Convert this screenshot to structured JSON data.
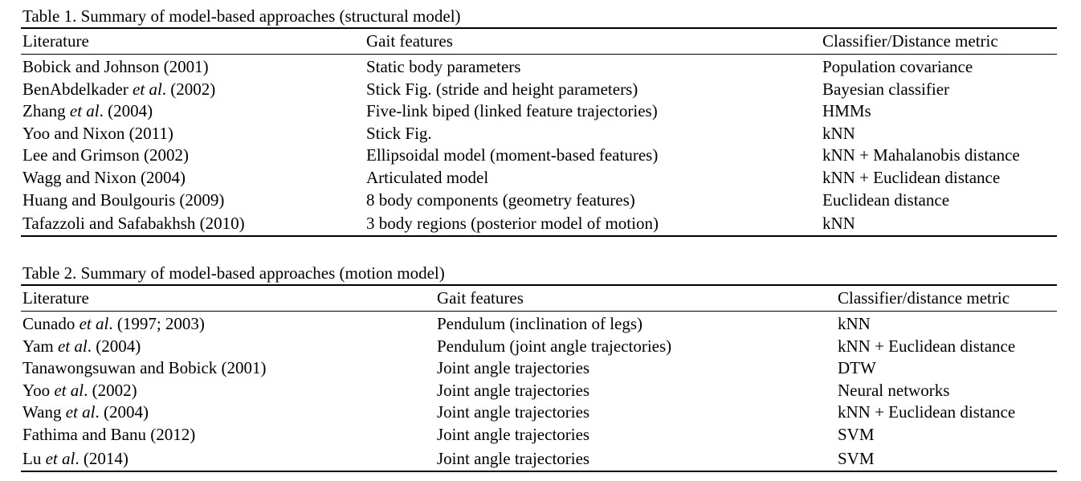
{
  "table1": {
    "caption": "Table 1. Summary of model-based approaches (structural model)",
    "headers": [
      "Literature",
      "Gait features",
      "Classifier/Distance metric"
    ],
    "rows": [
      {
        "lit": [
          {
            "t": "Bobick and Johnson (2001)"
          }
        ],
        "feat": "Static body parameters",
        "cls": "Population covariance"
      },
      {
        "lit": [
          {
            "t": "BenAbdelkader "
          },
          {
            "t": "et al",
            "i": true
          },
          {
            "t": ". (2002)"
          }
        ],
        "feat": "Stick Fig. (stride and height parameters)",
        "cls": "Bayesian classifier"
      },
      {
        "lit": [
          {
            "t": "Zhang "
          },
          {
            "t": "et al",
            "i": true
          },
          {
            "t": ". (2004)"
          }
        ],
        "feat": "Five-link biped (linked feature trajectories)",
        "cls": "HMMs"
      },
      {
        "lit": [
          {
            "t": "Yoo and Nixon (2011)"
          }
        ],
        "feat": "Stick Fig.",
        "cls": "kNN"
      },
      {
        "lit": [
          {
            "t": "Lee and Grimson (2002)"
          }
        ],
        "feat": "Ellipsoidal model (moment-based features)",
        "cls": "kNN + Mahalanobis distance"
      },
      {
        "lit": [
          {
            "t": "Wagg and Nixon (2004)"
          }
        ],
        "feat": "Articulated model",
        "cls": "kNN + Euclidean distance"
      },
      {
        "lit": [
          {
            "t": "Huang and Boulgouris (2009)"
          }
        ],
        "feat": "8 body components (geometry features)",
        "cls": "Euclidean distance"
      },
      {
        "lit": [
          {
            "t": "Tafazzoli and Safabakhsh (2010)"
          }
        ],
        "feat": "3 body regions (posterior model of motion)",
        "cls": "kNN"
      }
    ]
  },
  "table2": {
    "caption": "Table 2. Summary of model-based approaches (motion model)",
    "headers": [
      "Literature",
      "Gait features",
      "Classifier/distance metric"
    ],
    "rows": [
      {
        "lit": [
          {
            "t": "Cunado "
          },
          {
            "t": "et al",
            "i": true
          },
          {
            "t": ". (1997; 2003)"
          }
        ],
        "feat": "Pendulum (inclination of legs)",
        "cls": "kNN"
      },
      {
        "lit": [
          {
            "t": "Yam "
          },
          {
            "t": "et al",
            "i": true
          },
          {
            "t": ". (2004)"
          }
        ],
        "feat": "Pendulum (joint angle trajectories)",
        "cls": "kNN + Euclidean distance"
      },
      {
        "lit": [
          {
            "t": "Tanawongsuwan and Bobick (2001)"
          }
        ],
        "feat": "Joint angle trajectories",
        "cls": "DTW"
      },
      {
        "lit": [
          {
            "t": "Yoo "
          },
          {
            "t": "et al",
            "i": true
          },
          {
            "t": ". (2002)"
          }
        ],
        "feat": "Joint angle trajectories",
        "cls": "Neural networks"
      },
      {
        "lit": [
          {
            "t": "Wang "
          },
          {
            "t": "et al",
            "i": true
          },
          {
            "t": ". (2004)"
          }
        ],
        "feat": "Joint angle trajectories",
        "cls": "kNN + Euclidean distance"
      },
      {
        "lit": [
          {
            "t": "Fathima and Banu (2012)"
          }
        ],
        "feat": "Joint angle trajectories",
        "cls": "SVM"
      },
      {
        "lit": [
          {
            "t": "Lu "
          },
          {
            "t": "et al",
            "i": true
          },
          {
            "t": ". (2014)"
          }
        ],
        "feat": "Joint angle trajectories",
        "cls": "SVM"
      }
    ]
  }
}
